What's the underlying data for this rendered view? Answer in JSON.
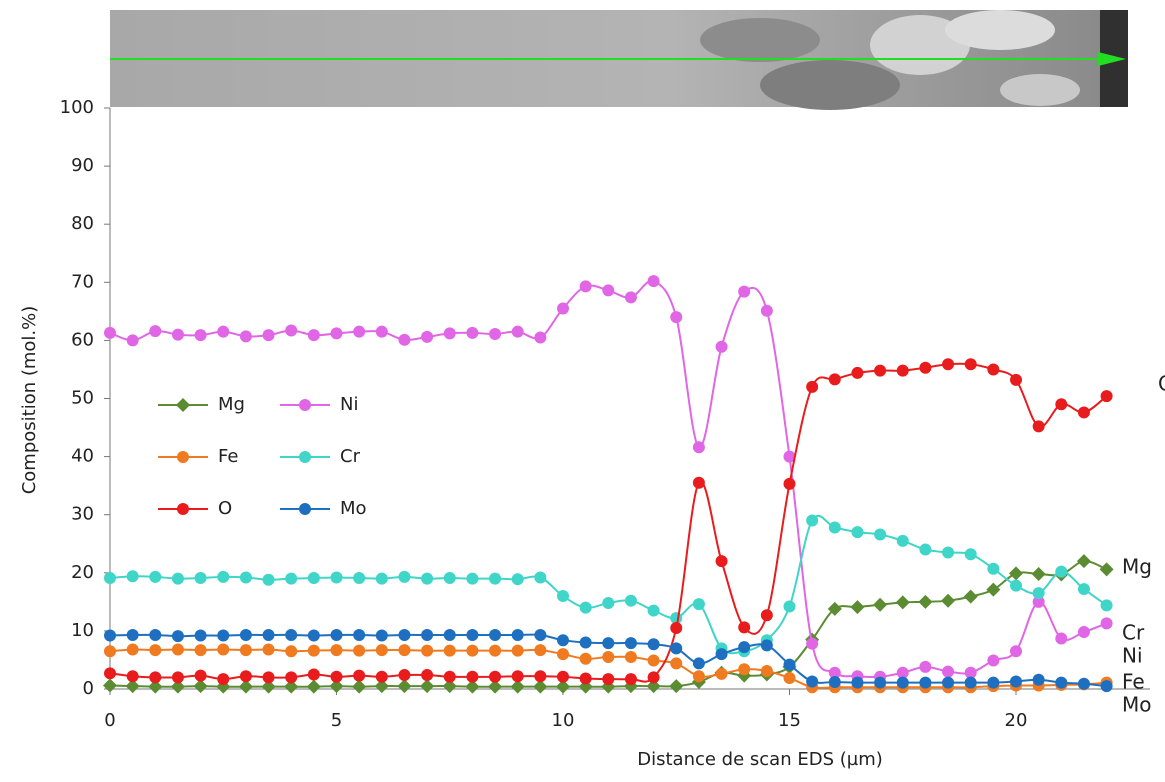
{
  "chart_data": {
    "type": "line",
    "xlabel": "Distance de scan EDS (µm)",
    "ylabel": "Composition (mol.%)",
    "x": [
      0,
      0.5,
      1,
      1.5,
      2,
      2.5,
      3,
      3.5,
      4,
      4.5,
      5,
      5.5,
      6,
      6.5,
      7,
      7.5,
      8,
      8.5,
      9,
      9.5,
      10,
      10.5,
      11,
      11.5,
      12,
      12.5,
      13,
      13.5,
      14,
      14.5,
      15,
      15.5,
      16,
      16.5,
      17,
      17.5,
      18,
      18.5,
      19,
      19.5,
      20,
      20.5,
      21,
      21.5,
      22
    ],
    "xlim": [
      0,
      23
    ],
    "xticks": [
      0,
      5,
      10,
      15,
      20
    ],
    "ylim": [
      0,
      100
    ],
    "yticks": [
      0,
      10,
      20,
      30,
      40,
      50,
      60,
      70,
      80,
      90,
      100
    ],
    "grid": false,
    "series": [
      {
        "name": "Mg",
        "color": "#5b8c32",
        "marker": "diamond",
        "values": [
          0.6,
          0.5,
          0.4,
          0.4,
          0.5,
          0.4,
          0.4,
          0.4,
          0.4,
          0.4,
          0.5,
          0.4,
          0.5,
          0.5,
          0.5,
          0.5,
          0.4,
          0.4,
          0.4,
          0.4,
          0.4,
          0.4,
          0.4,
          0.5,
          0.5,
          0.5,
          1.2,
          2.8,
          2.3,
          2.5,
          3.8,
          8.5,
          13.8,
          14.1,
          14.5,
          14.9,
          15,
          15.2,
          15.9,
          17.1,
          19.9,
          19.8,
          19.7,
          22,
          20.6
        ]
      },
      {
        "name": "Ni",
        "color": "#e066e6",
        "marker": "circle",
        "values": [
          61.3,
          60,
          61.6,
          61,
          60.9,
          61.5,
          60.7,
          60.9,
          61.7,
          60.9,
          61.2,
          61.5,
          61.5,
          60.1,
          60.6,
          61.2,
          61.3,
          61.1,
          61.5,
          60.5,
          65.5,
          69.3,
          68.6,
          67.4,
          70.2,
          64,
          41.6,
          58.9,
          68.4,
          65.1,
          40,
          7.8,
          2.8,
          2.2,
          2.1,
          2.8,
          3.8,
          3.0,
          2.8,
          4.9,
          6.5,
          15,
          8.7,
          9.8,
          11.3
        ]
      },
      {
        "name": "Fe",
        "color": "#f07a20",
        "marker": "circle",
        "values": [
          6.5,
          6.8,
          6.7,
          6.8,
          6.7,
          6.8,
          6.7,
          6.8,
          6.5,
          6.6,
          6.7,
          6.6,
          6.7,
          6.7,
          6.6,
          6.6,
          6.6,
          6.6,
          6.6,
          6.7,
          6,
          5.2,
          5.5,
          5.5,
          4.9,
          4.4,
          2.2,
          2.6,
          3.4,
          3.1,
          1.9,
          0.3,
          0.3,
          0.3,
          0.3,
          0.3,
          0.3,
          0.3,
          0.3,
          0.5,
          0.6,
          0.6,
          0.7,
          0.8,
          1.1
        ]
      },
      {
        "name": "Cr",
        "color": "#3fd5c8",
        "marker": "circle",
        "values": [
          19.1,
          19.4,
          19.3,
          19,
          19.1,
          19.3,
          19.2,
          18.8,
          19,
          19.1,
          19.2,
          19.1,
          19,
          19.3,
          19,
          19.1,
          19,
          19,
          18.9,
          19.2,
          16,
          14,
          14.8,
          15.2,
          13.5,
          12.2,
          14.6,
          7.0,
          6.5,
          8.4,
          14.2,
          29,
          27.8,
          27,
          26.6,
          25.5,
          24,
          23.5,
          23.2,
          20.7,
          17.8,
          16.5,
          20.2,
          17.2,
          14.4
        ]
      },
      {
        "name": "O",
        "color": "#e81c1c",
        "marker": "circle",
        "values": [
          2.7,
          2.2,
          2,
          2,
          2.3,
          1.7,
          2.2,
          2,
          2,
          2.5,
          2.1,
          2.3,
          2.1,
          2.4,
          2.4,
          2.1,
          2.1,
          2.1,
          2.2,
          2.2,
          2.1,
          1.8,
          1.7,
          1.7,
          2,
          10.5,
          35.5,
          22,
          10.6,
          12.7,
          35.3,
          52,
          53.3,
          54.4,
          54.8,
          54.8,
          55.3,
          55.9,
          55.9,
          55,
          53.2,
          45.2,
          49,
          47.6,
          50.4
        ]
      },
      {
        "name": "Mo",
        "color": "#1f6fc0",
        "marker": "circle",
        "values": [
          9.2,
          9.3,
          9.3,
          9.1,
          9.2,
          9.2,
          9.3,
          9.3,
          9.3,
          9.2,
          9.3,
          9.3,
          9.2,
          9.3,
          9.3,
          9.3,
          9.3,
          9.3,
          9.3,
          9.3,
          8.4,
          8,
          7.9,
          7.9,
          7.7,
          7,
          4.4,
          6,
          7.2,
          7.5,
          4.2,
          1.3,
          1.2,
          1.1,
          1.1,
          1.1,
          1.1,
          1.1,
          1.1,
          1.1,
          1.3,
          1.6,
          1.1,
          0.9,
          0.5
        ]
      }
    ]
  }
}
